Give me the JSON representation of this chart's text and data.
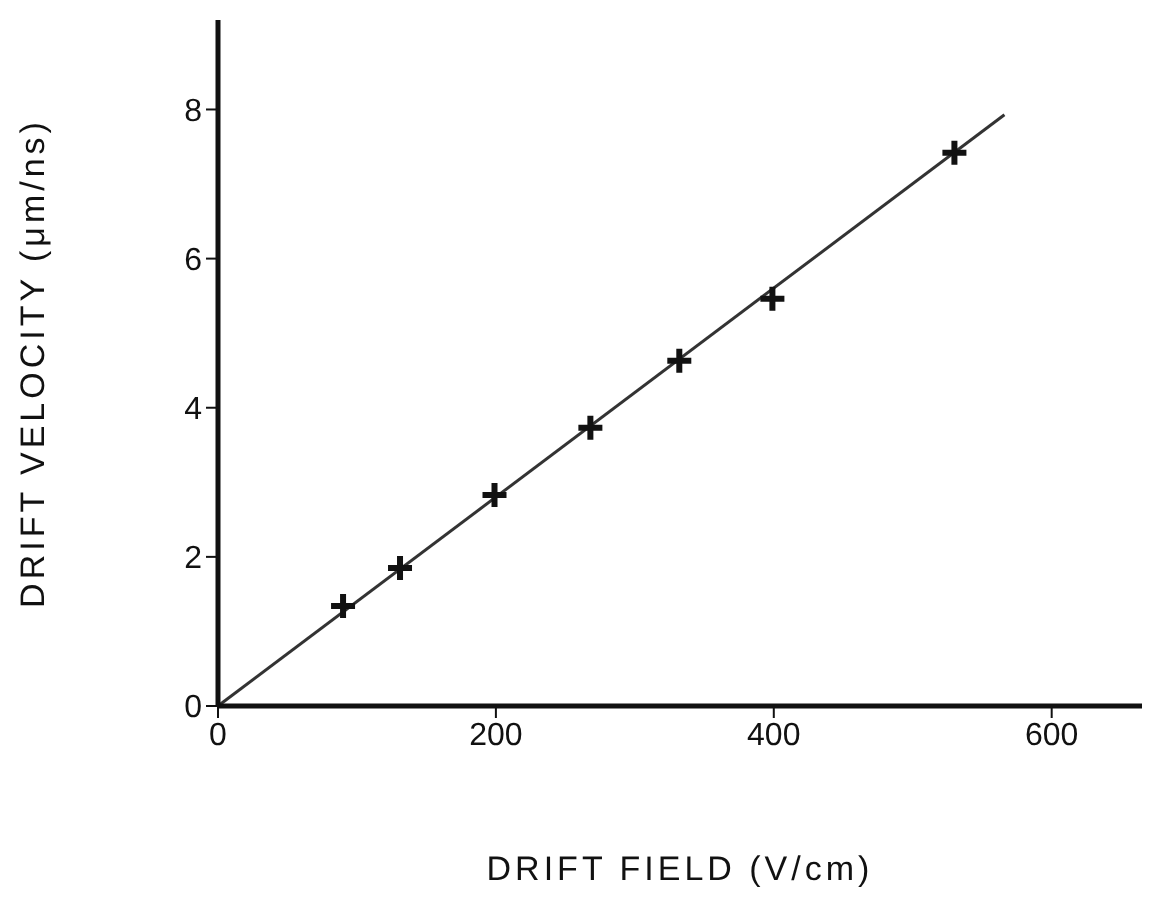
{
  "chart_data": {
    "type": "scatter",
    "xlabel": "DRIFT FIELD (V/cm)",
    "ylabel": "DRIFT VELOCITY (μm/ns)",
    "xlim": [
      0,
      665
    ],
    "ylim": [
      0,
      9.2
    ],
    "xticks": [
      0,
      200,
      400,
      600
    ],
    "yticks": [
      0,
      2,
      4,
      6,
      8
    ],
    "marker": "cross",
    "series": [
      {
        "color": "#111111",
        "x": [
          90,
          131,
          199,
          268,
          332,
          399,
          530
        ],
        "values": [
          1.34,
          1.85,
          2.83,
          3.73,
          4.63,
          5.46,
          7.42
        ]
      },
      {
        "type": "line",
        "color": "#333333",
        "marker": "none",
        "line_style": "solid",
        "x": [
          0,
          566
        ],
        "values": [
          0,
          7.93
        ]
      }
    ]
  }
}
